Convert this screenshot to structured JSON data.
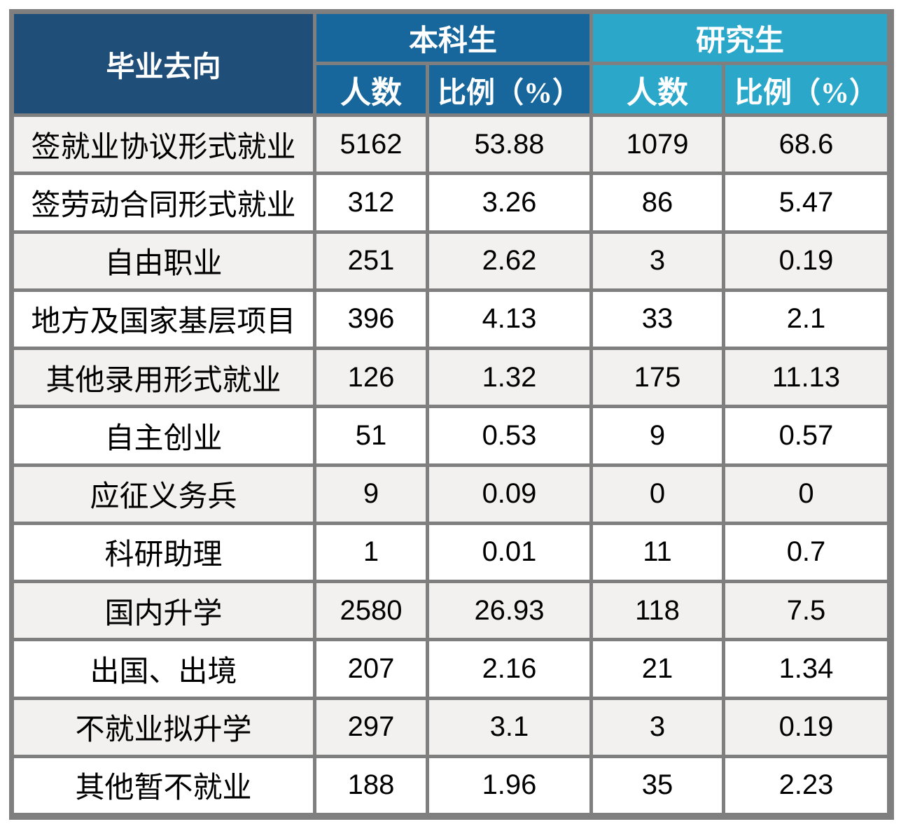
{
  "table": {
    "corner_header": "毕业去向",
    "groups": [
      {
        "label": "本科生"
      },
      {
        "label": "研究生"
      }
    ],
    "sub_headers": {
      "ug_count": "人数",
      "ug_pct": "比例（%）",
      "pg_count": "人数",
      "pg_pct": "比例（%）"
    },
    "rows": [
      {
        "label": "签就业协议形式就业",
        "ug_count": "5162",
        "ug_pct": "53.88",
        "pg_count": "1079",
        "pg_pct": "68.6"
      },
      {
        "label": "签劳动合同形式就业",
        "ug_count": "312",
        "ug_pct": "3.26",
        "pg_count": "86",
        "pg_pct": "5.47"
      },
      {
        "label": "自由职业",
        "ug_count": "251",
        "ug_pct": "2.62",
        "pg_count": "3",
        "pg_pct": "0.19"
      },
      {
        "label": "地方及国家基层项目",
        "ug_count": "396",
        "ug_pct": "4.13",
        "pg_count": "33",
        "pg_pct": "2.1"
      },
      {
        "label": "其他录用形式就业",
        "ug_count": "126",
        "ug_pct": "1.32",
        "pg_count": "175",
        "pg_pct": "11.13"
      },
      {
        "label": "自主创业",
        "ug_count": "51",
        "ug_pct": "0.53",
        "pg_count": "9",
        "pg_pct": "0.57"
      },
      {
        "label": "应征义务兵",
        "ug_count": "9",
        "ug_pct": "0.09",
        "pg_count": "0",
        "pg_pct": "0"
      },
      {
        "label": "科研助理",
        "ug_count": "1",
        "ug_pct": "0.01",
        "pg_count": "11",
        "pg_pct": "0.7"
      },
      {
        "label": "国内升学",
        "ug_count": "2580",
        "ug_pct": "26.93",
        "pg_count": "118",
        "pg_pct": "7.5"
      },
      {
        "label": "出国、出境",
        "ug_count": "207",
        "ug_pct": "2.16",
        "pg_count": "21",
        "pg_pct": "1.34"
      },
      {
        "label": "不就业拟升学",
        "ug_count": "297",
        "ug_pct": "3.1",
        "pg_count": "3",
        "pg_pct": "0.19"
      },
      {
        "label": "其他暂不就业",
        "ug_count": "188",
        "ug_pct": "1.96",
        "pg_count": "35",
        "pg_pct": "2.23"
      }
    ]
  },
  "colors": {
    "header_navy": "#1f4e79",
    "header_blue": "#17679c",
    "header_teal": "#2ba7ca",
    "row_alt_gray": "#f2f1f0",
    "grid_line_gray": "#7f7f7f"
  }
}
